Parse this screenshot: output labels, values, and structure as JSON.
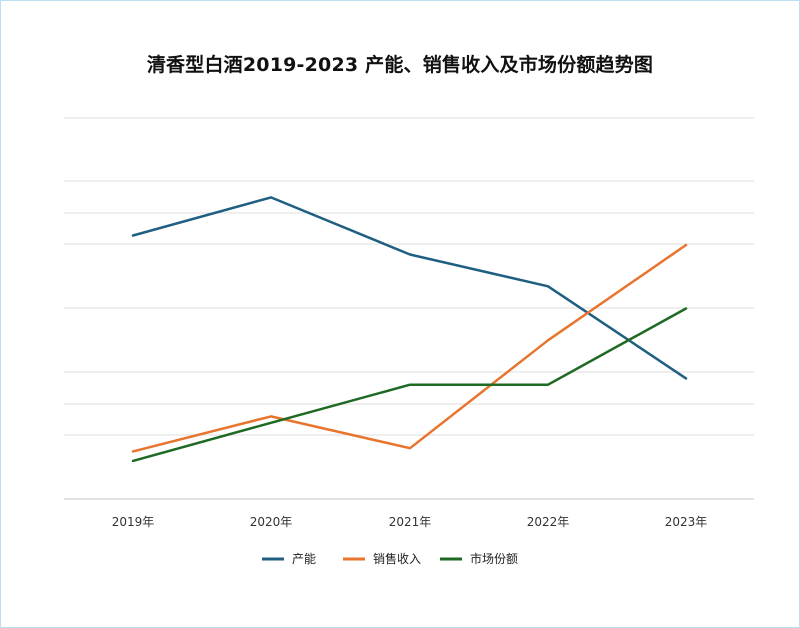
{
  "chart_data": {
    "type": "line",
    "title": "清香型白酒2019-2023 产能、销售收入及市场份额趋势图",
    "categories": [
      "2019年",
      "2020年",
      "2021年",
      "2022年",
      "2023年"
    ],
    "ylim": [
      0,
      12
    ],
    "grid": true,
    "legend_position": "bottom",
    "series": [
      {
        "name": "产能",
        "color": "#1f5f82",
        "values": [
          8.3,
          9.5,
          7.7,
          6.7,
          3.8
        ]
      },
      {
        "name": "销售收入",
        "color": "#e8742e",
        "values": [
          1.5,
          2.6,
          1.6,
          5.0,
          8.0
        ]
      },
      {
        "name": "市场份额",
        "color": "#1e6a24",
        "values": [
          1.2,
          2.4,
          3.6,
          3.6,
          6.0
        ]
      }
    ]
  }
}
